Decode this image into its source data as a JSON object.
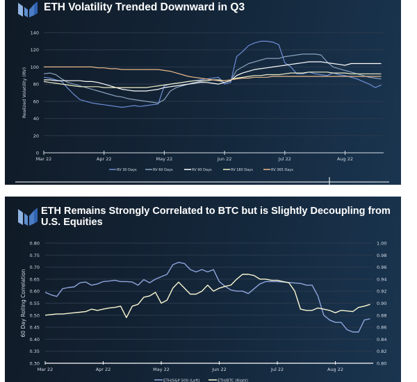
{
  "colors": {
    "rv30": "#6f8fd8",
    "rv60": "#8aa3bf",
    "rv90": "#ffffff",
    "rv180": "#f3f1c8",
    "rv365": "#e9b98a",
    "eth_spx": "#8fa6de",
    "eth_btc": "#fbf8d4"
  },
  "chart_data": [
    {
      "type": "line",
      "title": "ETH Volatility Trended Downward in Q3",
      "xlabel": "",
      "ylabel": "Realized Volatility (RV)",
      "ylim": [
        0,
        140
      ],
      "yticks": [
        "0",
        "20",
        "40",
        "60",
        "80",
        "100",
        "120",
        "140"
      ],
      "ytick_values": [
        0,
        20,
        40,
        60,
        80,
        100,
        120,
        140
      ],
      "xticks": [
        "Mar 22",
        "Apr 22",
        "May 22",
        "Jun 22",
        "Jul 22",
        "Aug 22"
      ],
      "xlim_months": [
        0,
        5.63
      ],
      "grid": true,
      "legend": "bottom",
      "x": [
        0,
        0.1,
        0.2,
        0.3,
        0.4,
        0.5,
        0.6,
        0.7,
        0.8,
        0.9,
        1.0,
        1.1,
        1.2,
        1.3,
        1.4,
        1.5,
        1.6,
        1.7,
        1.8,
        1.9,
        2.0,
        2.1,
        2.2,
        2.3,
        2.4,
        2.5,
        2.6,
        2.7,
        2.8,
        2.9,
        3.0,
        3.1,
        3.2,
        3.3,
        3.4,
        3.5,
        3.6,
        3.7,
        3.8,
        3.9,
        4.0,
        4.1,
        4.2,
        4.3,
        4.4,
        4.5,
        4.6,
        4.7,
        4.8,
        4.9,
        5.0,
        5.1,
        5.2,
        5.3,
        5.4,
        5.5,
        5.6
      ],
      "series": [
        {
          "name": "RV 30 Days",
          "color_key": "rv30",
          "values": [
            88,
            87,
            85,
            83,
            75,
            68,
            62,
            60,
            58,
            57,
            56,
            55,
            54,
            53,
            54,
            55,
            54,
            55,
            56,
            57,
            78,
            80,
            81,
            82,
            83,
            84,
            85,
            86,
            87,
            88,
            80,
            82,
            112,
            118,
            125,
            128,
            130,
            130,
            129,
            126,
            105,
            100,
            92,
            92,
            94,
            92,
            91,
            90,
            93,
            91,
            90,
            88,
            86,
            83,
            80,
            76,
            79
          ]
        },
        {
          "name": "RV 60 Days",
          "color_key": "rv60",
          "values": [
            92,
            93,
            91,
            86,
            82,
            80,
            78,
            76,
            74,
            72,
            70,
            68,
            66,
            65,
            63,
            62,
            61,
            60,
            59,
            58,
            62,
            72,
            76,
            78,
            80,
            82,
            83,
            84,
            85,
            84,
            82,
            84,
            96,
            100,
            104,
            106,
            108,
            110,
            110,
            110,
            112,
            113,
            114,
            115,
            115,
            115,
            114,
            106,
            100,
            98,
            96,
            94,
            92,
            90,
            88,
            87,
            86
          ]
        },
        {
          "name": "RV 90 Days",
          "color_key": "rv90",
          "values": [
            85,
            85,
            84,
            84,
            84,
            84,
            84,
            83,
            83,
            82,
            80,
            78,
            76,
            74,
            73,
            72,
            72,
            72,
            73,
            74,
            76,
            77,
            78,
            79,
            80,
            81,
            82,
            82,
            81,
            80,
            82,
            84,
            90,
            93,
            95,
            97,
            98,
            99,
            100,
            101,
            102,
            103,
            104,
            105,
            106,
            106,
            106,
            105,
            104,
            103,
            102,
            104,
            104,
            104,
            104,
            104,
            104
          ]
        },
        {
          "name": "RV 180 Days",
          "color_key": "rv180",
          "values": [
            83,
            82,
            81,
            80,
            79,
            78,
            77,
            77,
            77,
            77,
            76,
            76,
            76,
            76,
            76,
            76,
            76,
            76,
            77,
            78,
            79,
            80,
            81,
            82,
            83,
            84,
            84,
            84,
            85,
            85,
            84,
            85,
            87,
            88,
            89,
            90,
            90,
            91,
            91,
            91,
            92,
            93,
            93,
            93,
            94,
            94,
            94,
            94,
            93,
            93,
            93,
            92,
            92,
            92,
            92,
            92,
            92
          ]
        },
        {
          "name": "RV 365 Days",
          "color_key": "rv365",
          "values": [
            100,
            100,
            100,
            100,
            100,
            100,
            100,
            100,
            100,
            99,
            99,
            98,
            98,
            97,
            97,
            97,
            97,
            97,
            97,
            97,
            96,
            95,
            93,
            91,
            89,
            88,
            87,
            86,
            85,
            84,
            84,
            85,
            86,
            87,
            87,
            88,
            88,
            88,
            89,
            89,
            89,
            89,
            89,
            89,
            89,
            89,
            89,
            89,
            89,
            89,
            89,
            89,
            89,
            89,
            89,
            89,
            89
          ]
        }
      ]
    },
    {
      "type": "line",
      "title": "ETH Remains Strongly Correlated to BTC but is Slightly Decoupling from U.S. Equities",
      "xlabel": "",
      "ylabel": "60 Day Rolling Correlation",
      "ylim_left": [
        0.3,
        0.8
      ],
      "ylim_right": [
        0.8,
        1.0
      ],
      "yticks_left": [
        "0.80",
        "0.75",
        "0.70",
        "0.65",
        "0.60",
        "0.55",
        "0.50",
        "0.45",
        "0.40",
        "0.35",
        "0.30"
      ],
      "yticks_right": [
        "1.00",
        "0.98",
        "0.96",
        "0.94",
        "0.92",
        "0.90",
        "0.88",
        "0.86",
        "0.84",
        "0.82",
        "0.80"
      ],
      "xticks": [
        "Mar 22",
        "Apr 22",
        "May 22",
        "Jun 22",
        "Jul 22",
        "Aug 22"
      ],
      "grid": true,
      "legend": "bottom",
      "x": [
        0,
        0.1,
        0.2,
        0.3,
        0.4,
        0.5,
        0.6,
        0.7,
        0.8,
        0.9,
        1.0,
        1.1,
        1.2,
        1.3,
        1.4,
        1.5,
        1.6,
        1.7,
        1.8,
        1.9,
        2.0,
        2.1,
        2.2,
        2.3,
        2.4,
        2.5,
        2.6,
        2.7,
        2.8,
        2.9,
        3.0,
        3.1,
        3.2,
        3.3,
        3.4,
        3.5,
        3.6,
        3.7,
        3.8,
        3.9,
        4.0,
        4.1,
        4.2,
        4.3,
        4.4,
        4.5,
        4.6,
        4.7,
        4.8,
        4.9,
        5.0,
        5.1,
        5.2,
        5.3,
        5.4,
        5.5,
        5.6
      ],
      "series": [
        {
          "name": "ETH/S&P 500 (Left)",
          "axis": "left",
          "color_key": "eth_spx",
          "values": [
            0.595,
            0.585,
            0.578,
            0.61,
            0.615,
            0.618,
            0.635,
            0.638,
            0.625,
            0.63,
            0.64,
            0.642,
            0.645,
            0.64,
            0.64,
            0.638,
            0.625,
            0.648,
            0.635,
            0.65,
            0.66,
            0.67,
            0.71,
            0.72,
            0.715,
            0.69,
            0.68,
            0.69,
            0.68,
            0.69,
            0.64,
            0.62,
            0.605,
            0.6,
            0.6,
            0.59,
            0.61,
            0.63,
            0.64,
            0.64,
            0.64,
            0.638,
            0.636,
            0.634,
            0.632,
            0.625,
            0.625,
            0.58,
            0.5,
            0.48,
            0.47,
            0.47,
            0.44,
            0.43,
            0.43,
            0.48,
            0.485
          ]
        },
        {
          "name": "ETH/BTC (Right)",
          "axis": "right",
          "color_key": "eth_btc",
          "values": [
            0.88,
            0.881,
            0.882,
            0.882,
            0.883,
            0.884,
            0.885,
            0.886,
            0.89,
            0.888,
            0.89,
            0.892,
            0.893,
            0.895,
            0.876,
            0.895,
            0.898,
            0.91,
            0.912,
            0.918,
            0.9,
            0.905,
            0.925,
            0.935,
            0.925,
            0.915,
            0.915,
            0.92,
            0.93,
            0.92,
            0.925,
            0.928,
            0.93,
            0.94,
            0.948,
            0.948,
            0.946,
            0.94,
            0.94,
            0.938,
            0.938,
            0.936,
            0.934,
            0.92,
            0.89,
            0.888,
            0.888,
            0.892,
            0.89,
            0.888,
            0.884,
            0.888,
            0.887,
            0.886,
            0.893,
            0.895,
            0.898
          ]
        }
      ]
    }
  ]
}
